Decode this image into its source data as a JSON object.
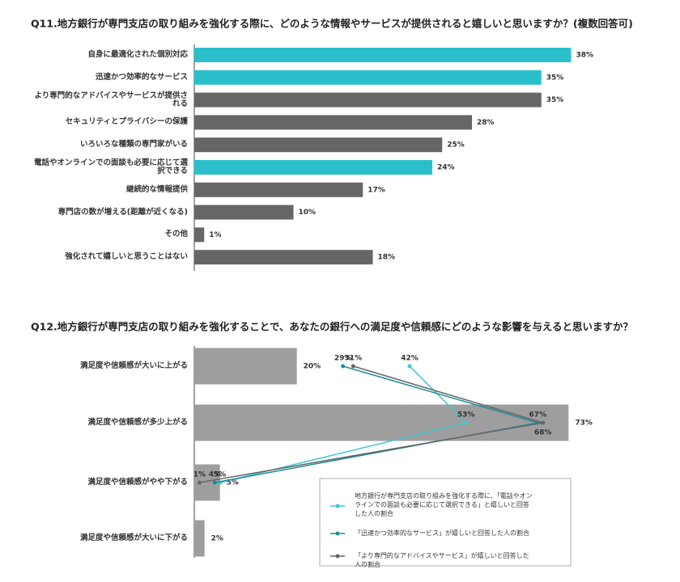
{
  "chart_data": [
    {
      "type": "bar",
      "title": "Q11.地方銀行が専門支店の取り組みを強化する際に、どのような情報やサービスが提供されると嬉しいと思いますか？(複数回答可)",
      "categories": [
        "自身に最適化された個別対応",
        "迅速かつ効率的なサービス",
        "より専門的なアドバイスやサービスが提供される",
        "セキュリティとプライバシーの保護",
        "いろいろな種類の専門家がいる",
        "電話やオンラインでの面談も必要に応じて選択できる",
        "継続的な情報提供",
        "専門店の数が増える(距離が近くなる)",
        "その他",
        "強化されて嬉しいと思うことはない"
      ],
      "values": [
        38,
        35,
        35,
        28,
        25,
        24,
        17,
        10,
        1,
        18
      ],
      "value_labels": [
        "38%",
        "35%",
        "35%",
        "28%",
        "25%",
        "24%",
        "17%",
        "10%",
        "1%",
        "18%"
      ],
      "colors": [
        "#2bbfcc",
        "#2bbfcc",
        "#666666",
        "#666666",
        "#666666",
        "#2bbfcc",
        "#666666",
        "#666666",
        "#666666",
        "#666666"
      ],
      "xlim": [
        0,
        40
      ]
    },
    {
      "type": "combo",
      "title": "Q12.地方銀行が専門支店の取り組みを強化することで、あなたの銀行への満足度や信頼感にどのような影響を与えると思いますか？",
      "categories": [
        "満足度や信頼感が大いに上がる",
        "満足度や信頼感が多少上がる",
        "満足度や信頼感がやや下がる",
        "満足度や信頼感が大いに下がる"
      ],
      "values": [
        20,
        73,
        5,
        2
      ],
      "value_labels": [
        "20%",
        "73%",
        "5%",
        "2%"
      ],
      "color": "#9e9e9e",
      "series": [
        {
          "name": "地方銀行が専門支店の取り組みを強化する際に、「電話やオンラインでの面談も必要に応じて選択できる」と嬉しいと回答した人の割合",
          "color": "#3cc6d2",
          "values": [
            42,
            53,
            5,
            null
          ],
          "value_labels": [
            "42%",
            "53%",
            "5%",
            null
          ]
        },
        {
          "name": "「迅速かつ効率的なサービス」が嬉しいと回答した人の割合",
          "color": "#1f8c9c",
          "values": [
            29,
            67,
            4,
            null
          ],
          "value_labels": [
            "29%",
            "67%",
            "4%",
            null
          ]
        },
        {
          "name": "「より専門的なアドバイスやサービス」が嬉しいと回答した人の割合",
          "color": "#666666",
          "values": [
            31,
            68,
            1,
            null
          ],
          "value_labels": [
            "31%",
            "68%",
            "1%",
            null
          ]
        }
      ],
      "xlim": [
        0,
        75
      ]
    }
  ]
}
